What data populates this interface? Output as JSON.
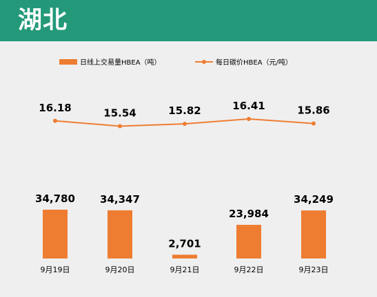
{
  "header": {
    "title": "湖北"
  },
  "colors": {
    "header_bg": "#23997a",
    "series": "#ee7d31",
    "text": "#000000",
    "background": "#efefef"
  },
  "chart_data": {
    "type": "bar+line",
    "categories": [
      "9月19日",
      "9月20日",
      "9月21日",
      "9月22日",
      "9月23日"
    ],
    "legend": {
      "placement": "top",
      "entries": [
        "日线上交易量HBEA（吨）",
        "每日碳价HBEA（元/吨）"
      ]
    },
    "grid": false,
    "series": [
      {
        "name": "日线上交易量HBEA（吨）",
        "type": "bar",
        "values": [
          34780,
          34347,
          2701,
          23984,
          34249
        ],
        "labels": [
          "34,780",
          "34,347",
          "2,701",
          "23,984",
          "34,249"
        ]
      },
      {
        "name": "每日碳价HBEA（元/吨）",
        "type": "line",
        "values": [
          16.18,
          15.54,
          15.82,
          16.41,
          15.86
        ],
        "labels": [
          "16.18",
          "15.54",
          "15.82",
          "16.41",
          "15.86"
        ]
      }
    ]
  }
}
